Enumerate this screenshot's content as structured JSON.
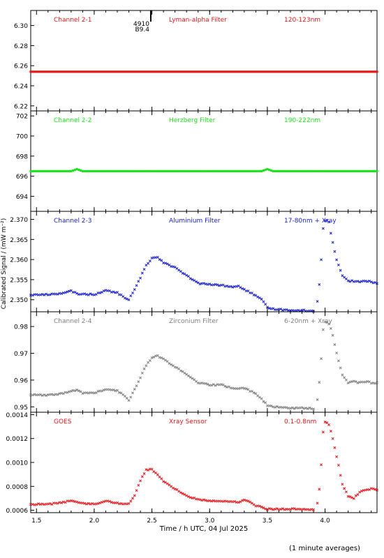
{
  "xlabel": "Time / h UTC, 04 Jul 2025",
  "ylabel": "Calibrated Signal / (mW m⁻²)",
  "footnote": "(1 minute averages)",
  "marker_note": {
    "top": "4910",
    "bottom": "B9.4",
    "x": 2.49
  },
  "x_range": [
    1.45,
    4.45
  ],
  "x_ticks": [
    "1.5",
    "2.0",
    "2.5",
    "3.0",
    "3.5",
    "4.0"
  ],
  "x_tick_values": [
    1.5,
    2.0,
    2.5,
    3.0,
    3.5,
    4.0
  ],
  "colors": {
    "red": "#e8161a",
    "green": "#1ee61e",
    "blue": "#1a22cc",
    "gray": "#808080"
  },
  "panels": [
    {
      "channel": "Channel 2-1",
      "filter": "Lyman-alpha Filter",
      "band": "120-123nm",
      "color": "#e8161a",
      "ylim": [
        6.215,
        6.315
      ],
      "yticks": [
        6.22,
        6.24,
        6.26,
        6.28,
        6.3
      ],
      "ytick_labels": [
        "6.22",
        "6.24",
        "6.26",
        "6.28",
        "6.30"
      ]
    },
    {
      "channel": "Channel 2-2",
      "filter": "Herzberg Filter",
      "band": "190-222nm",
      "color": "#1ee61e",
      "ylim": [
        692.5,
        702.5
      ],
      "yticks": [
        694,
        696,
        698,
        700,
        702
      ],
      "ytick_labels": [
        "694",
        "696",
        "698",
        "700",
        "702"
      ]
    },
    {
      "channel": "Channel 2-3",
      "filter": "Aluminium Filter",
      "band": "17-80nm + Xray",
      "color": "#1a22cc",
      "ylim": [
        2.347,
        2.372
      ],
      "yticks": [
        2.35,
        2.355,
        2.36,
        2.365,
        2.37
      ],
      "ytick_labels": [
        "2.350",
        "2.355",
        "2.360",
        "2.365",
        "2.370"
      ]
    },
    {
      "channel": "Channel 2-4",
      "filter": "Zirconium Filter",
      "band": "6-20nm + Xray",
      "color": "#808080",
      "ylim": [
        0.948,
        0.9855
      ],
      "yticks": [
        0.95,
        0.96,
        0.97,
        0.98
      ],
      "ytick_labels": [
        "0.95",
        "0.96",
        "0.97",
        "0.98"
      ]
    },
    {
      "channel": "GOES",
      "filter": "Xray Sensor",
      "band": "0.1-0.8nm",
      "color": "#e8161a",
      "ylim": [
        0.00058,
        0.00142
      ],
      "yticks": [
        0.0006,
        0.0008,
        0.001,
        0.0012,
        0.0014
      ],
      "ytick_labels": [
        "0.0006",
        "0.0008",
        "0.0010",
        "0.0012",
        "0.0014"
      ]
    }
  ],
  "chart_data": {
    "type": "scatter",
    "xlabel": "Time / h UTC, 04 Jul 2025",
    "ylabel": "Calibrated Signal / (mW m⁻²)",
    "x": [
      1.45,
      1.6,
      1.75,
      1.8,
      1.85,
      1.9,
      2.0,
      2.1,
      2.2,
      2.25,
      2.3,
      2.35,
      2.4,
      2.45,
      2.5,
      2.55,
      2.6,
      2.7,
      2.8,
      2.9,
      3.0,
      3.1,
      3.2,
      3.25,
      3.3,
      3.4,
      3.45,
      3.5,
      3.55,
      3.7,
      3.85,
      3.92,
      3.93,
      3.96,
      3.98,
      4.0,
      4.03,
      4.06,
      4.1,
      4.15,
      4.2,
      4.25,
      4.3,
      4.35,
      4.4,
      4.45
    ],
    "series": [
      {
        "name": "Channel 2-1",
        "values": [
          6.254,
          6.254,
          6.254,
          6.254,
          6.254,
          6.254,
          6.254,
          6.254,
          6.254,
          6.254,
          6.254,
          6.254,
          6.254,
          6.254,
          6.254,
          6.254,
          6.254,
          6.254,
          6.254,
          6.254,
          6.254,
          6.254,
          6.254,
          6.254,
          6.254,
          6.254,
          6.254,
          6.254,
          6.254,
          6.254,
          6.254,
          6.254,
          6.254,
          6.254,
          6.254,
          6.254,
          6.254,
          6.254,
          6.254,
          6.254,
          6.254,
          6.254,
          6.254,
          6.254,
          6.254,
          6.254
        ]
      },
      {
        "name": "Channel 2-2",
        "values": [
          696.5,
          696.5,
          696.5,
          696.5,
          696.7,
          696.5,
          696.5,
          696.5,
          696.5,
          696.5,
          696.5,
          696.5,
          696.5,
          696.5,
          696.5,
          696.5,
          696.5,
          696.5,
          696.5,
          696.5,
          696.5,
          696.5,
          696.5,
          696.5,
          696.5,
          696.5,
          696.5,
          696.7,
          696.5,
          696.5,
          696.5,
          696.5,
          696.5,
          696.5,
          696.5,
          696.5,
          696.5,
          696.5,
          696.5,
          696.5,
          696.5,
          696.5,
          696.5,
          696.5,
          696.5,
          696.5
        ]
      },
      {
        "name": "Channel 2-3",
        "values": [
          2.3512,
          2.3513,
          2.3517,
          2.3522,
          2.3515,
          2.3514,
          2.3513,
          2.3523,
          2.3517,
          2.3508,
          2.35,
          2.3525,
          2.3555,
          2.3585,
          2.3604,
          2.3606,
          2.3593,
          2.358,
          2.356,
          2.3541,
          2.3538,
          2.3536,
          2.3532,
          2.3533,
          2.3526,
          2.351,
          2.35,
          2.3481,
          2.3477,
          2.3474,
          2.3473,
          2.347,
          2.3487,
          2.3563,
          2.3673,
          2.3697,
          2.37,
          2.365,
          2.36,
          2.356,
          2.3547,
          2.3546,
          2.3545,
          2.3546,
          2.3545,
          2.354
        ]
      },
      {
        "name": "Channel 2-4",
        "values": [
          0.9545,
          0.9543,
          0.9552,
          0.9558,
          0.9563,
          0.9552,
          0.9552,
          0.9565,
          0.956,
          0.9545,
          0.9525,
          0.9565,
          0.961,
          0.9655,
          0.9685,
          0.969,
          0.9678,
          0.965,
          0.962,
          0.959,
          0.9582,
          0.9582,
          0.957,
          0.9568,
          0.957,
          0.955,
          0.953,
          0.9505,
          0.95,
          0.9496,
          0.9495,
          0.9493,
          0.9515,
          0.963,
          0.978,
          0.9818,
          0.9815,
          0.978,
          0.97,
          0.962,
          0.959,
          0.9595,
          0.959,
          0.9595,
          0.959,
          0.9588
        ]
      },
      {
        "name": "GOES",
        "values": [
          0.00065,
          0.00065,
          0.00067,
          0.00068,
          0.00067,
          0.00066,
          0.00065,
          0.00068,
          0.00066,
          0.00065,
          0.00066,
          0.00072,
          0.00085,
          0.00094,
          0.00094,
          0.0009,
          0.00084,
          0.00078,
          0.00072,
          0.00069,
          0.00068,
          0.00068,
          0.00067,
          0.00067,
          0.00069,
          0.00064,
          0.00063,
          0.00061,
          0.00061,
          0.00061,
          0.00061,
          0.0006,
          0.00063,
          0.00085,
          0.00124,
          0.00134,
          0.00133,
          0.00123,
          0.00105,
          0.00082,
          0.00072,
          0.0007,
          0.00075,
          0.00077,
          0.00078,
          0.00077
        ]
      }
    ],
    "xlim": [
      1.45,
      4.45
    ],
    "grid": false
  }
}
